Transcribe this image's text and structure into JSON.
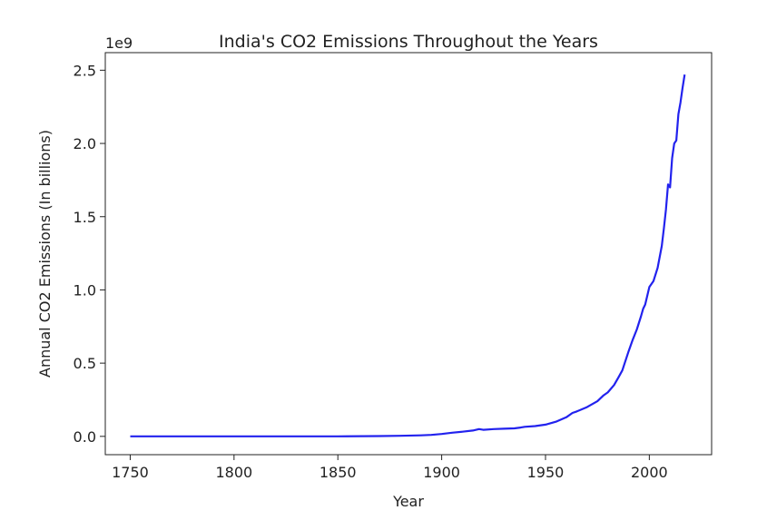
{
  "chart_data": {
    "type": "line",
    "title": "India's CO2 Emissions Throughout the Years",
    "xlabel": "Year",
    "ylabel": "Annual CO2 Emissions (In billions)",
    "offset_text": "1e9",
    "xlim": [
      1738,
      2030
    ],
    "ylim": [
      -0.125,
      2.62
    ],
    "xticks": [
      1750,
      1800,
      1850,
      1900,
      1950,
      2000
    ],
    "xtick_labels": [
      "1750",
      "1800",
      "1850",
      "1900",
      "1950",
      "2000"
    ],
    "yticks": [
      0.0,
      0.5,
      1.0,
      1.5,
      2.0,
      2.5
    ],
    "ytick_labels": [
      "0.0",
      "0.5",
      "1.0",
      "1.5",
      "2.0",
      "2.5"
    ],
    "grid": false,
    "series": [
      {
        "color": "#2222ee",
        "x": [
          1750,
          1800,
          1850,
          1870,
          1880,
          1890,
          1895,
          1900,
          1905,
          1910,
          1915,
          1918,
          1920,
          1925,
          1930,
          1935,
          1938,
          1940,
          1945,
          1950,
          1955,
          1960,
          1963,
          1965,
          1970,
          1975,
          1978,
          1980,
          1983,
          1985,
          1987,
          1990,
          1992,
          1994,
          1996,
          1997,
          1998,
          2000,
          2002,
          2004,
          2006,
          2007,
          2008,
          2009,
          2010,
          2011,
          2012,
          2013,
          2014,
          2015,
          2016,
          2017
        ],
        "y": [
          0.0,
          0.0,
          0.0,
          0.002,
          0.004,
          0.007,
          0.01,
          0.016,
          0.025,
          0.032,
          0.04,
          0.05,
          0.045,
          0.05,
          0.052,
          0.055,
          0.06,
          0.065,
          0.07,
          0.08,
          0.1,
          0.13,
          0.16,
          0.17,
          0.2,
          0.24,
          0.28,
          0.3,
          0.35,
          0.4,
          0.45,
          0.58,
          0.66,
          0.73,
          0.82,
          0.87,
          0.9,
          1.02,
          1.06,
          1.15,
          1.3,
          1.42,
          1.55,
          1.72,
          1.7,
          1.9,
          2.0,
          2.02,
          2.2,
          2.28,
          2.38,
          2.47
        ]
      }
    ]
  }
}
